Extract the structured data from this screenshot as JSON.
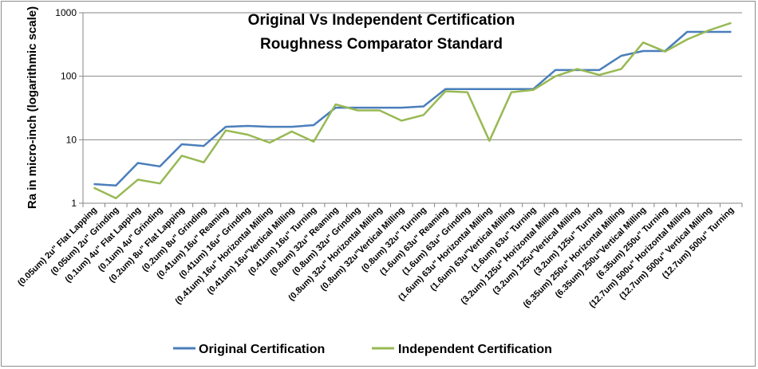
{
  "chart_data": {
    "type": "line",
    "title": "Original Vs Independent Certification",
    "subtitle": "Roughness Comparator Standard",
    "xlabel": "",
    "ylabel": "Ra in micro-inch (logarithmic scale)",
    "yscale": "log",
    "ylim": [
      1,
      1000
    ],
    "yticks": [
      "1",
      "10",
      "100",
      "1000"
    ],
    "grid": "horizontal major",
    "legend": "bottom",
    "categories": [
      "(0.05um) 2u\" Flat Lapping",
      "(0.05um) 2u\" Grinding",
      "(0.1um) 4u\" Flat Lapping",
      "(0.1um) 4u\" Grinding",
      "(0.2um) 8u\" Flat Lapping",
      "(0.2um) 8u\" Grinding",
      "(0.41um) 16u\" Reaming",
      "(0.41um) 16u\" Grinding",
      "(0.41um) 16u\" Horizontal Milling",
      "(0.41um) 16u\"Vertical Milling",
      "(0.41um) 16u\" Turning",
      "(0.8um) 32u\" Reaming",
      "(0.8um) 32u\" Grinding",
      "(0.8um) 32u\" Horizontal Milling",
      "(0.8um) 32u\"Vertical Milling",
      "(0.8um) 32u\" Turning",
      "(1.6um) 63u\" Reaming",
      "(1.6um) 63u\" Grinding",
      "(1.6um) 63u\" Horizontal Milling",
      "(1.6um) 63u\"Vertical Milling",
      "(1.6um) 63u\" Turning",
      "(3.2um) 125u\" Horizontal Milling",
      "(3.2um) 125u\"Vertical Milling",
      "(3.2um) 125u\" Turning",
      "(6.35um) 250u\" Horizontal Milling",
      "(6.35um) 250u\"Vertical Milling",
      "(6.35um) 250u\" Turning",
      "(12.7um) 500u\" Horizontal Milling",
      "(12.7um) 500u\" Vertical Milling",
      "(12.7um) 500u\" Turning"
    ],
    "series": [
      {
        "name": "Original Certification",
        "color": "#4a7ebb",
        "values": [
          2,
          1.9,
          4.3,
          3.8,
          8.5,
          8,
          16,
          16.5,
          16,
          16,
          17,
          32,
          32,
          32,
          32,
          33.5,
          63,
          63,
          63,
          63,
          63,
          125,
          125,
          125,
          210,
          250,
          250,
          500,
          500,
          500
        ]
      },
      {
        "name": "Independent Certification",
        "color": "#98b954",
        "values": [
          1.75,
          1.2,
          2.35,
          2.05,
          5.6,
          4.4,
          14,
          12,
          9,
          13.5,
          9.3,
          36,
          29,
          29,
          20,
          24.5,
          58,
          56,
          9.6,
          56,
          61,
          100,
          130,
          105,
          130,
          340,
          245,
          380,
          530,
          690
        ]
      }
    ]
  }
}
